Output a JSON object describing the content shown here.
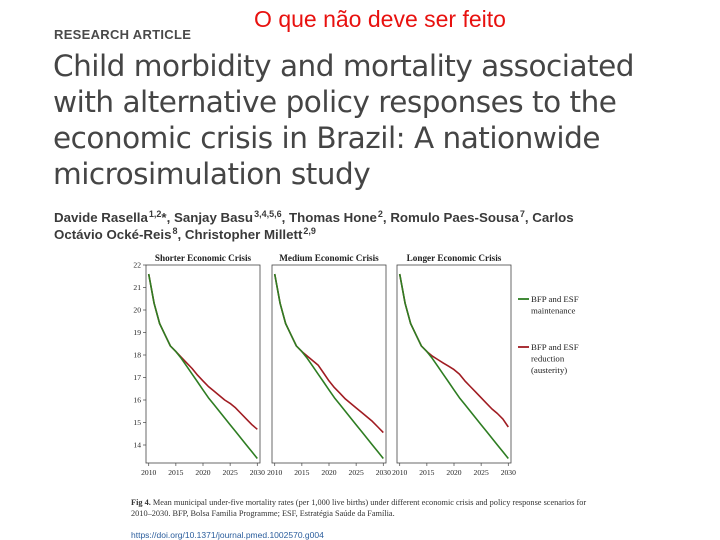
{
  "slide": {
    "title": "O que não deve ser feito"
  },
  "article": {
    "label": "RESEARCH ARTICLE",
    "title": "Child morbidity and mortality associated with alternative policy responses to the economic crisis in Brazil: A nationwide microsimulation study",
    "authors_line1": [
      {
        "name": "Davide Rasella",
        "sup": "1,2",
        "suffix": "*, "
      },
      {
        "name": "Sanjay Basu",
        "sup": "3,4,5,6",
        "suffix": ", "
      },
      {
        "name": "Thomas Hone",
        "sup": "2",
        "suffix": ", "
      },
      {
        "name": "Romulo Paes-Sousa",
        "sup": "7",
        "suffix": ", "
      },
      {
        "name": "Carlos",
        "sup": "",
        "suffix": ""
      }
    ],
    "authors_line2": [
      {
        "name": "Octávio Ocké-Reis",
        "sup": "8",
        "suffix": ", "
      },
      {
        "name": "Christopher Millett",
        "sup": "2,9",
        "suffix": ""
      }
    ],
    "caption_label": "Fig 4.",
    "caption_text": " Mean municipal under-five mortality rates (per 1,000 live births) under different economic crisis and policy response scenarios for 2010–2030. BFP, Bolsa Familia Programme; ESF, Estratégia Saúde da Família.",
    "doi": "https://doi.org/10.1371/journal.pmed.1002570.g004"
  },
  "chart_data": {
    "type": "line",
    "x": [
      2010,
      2015,
      2020,
      2025,
      2030
    ],
    "ylim": [
      13.2,
      22
    ],
    "yticks": [
      14,
      15,
      16,
      17,
      18,
      19,
      20,
      21,
      22
    ],
    "xticks": [
      2010,
      2015,
      2020,
      2025,
      2030
    ],
    "colors": {
      "maintenance": "#2e7d22",
      "reduction": "#a01c22"
    },
    "legend": [
      "BFP and ESF maintenance",
      "BFP and ESF reduction (austerity)"
    ],
    "legend_lines": [
      [
        "BFP and ESF",
        "maintenance"
      ],
      [
        "BFP and ESF",
        "reduction",
        "(austerity)"
      ]
    ],
    "legend_placement": "right",
    "panels": [
      {
        "title": "Shorter Economic Crisis",
        "series": [
          {
            "name": "BFP and ESF maintenance",
            "points": [
              [
                2010,
                21.6
              ],
              [
                2011,
                20.3
              ],
              [
                2012,
                19.4
              ],
              [
                2013,
                18.9
              ],
              [
                2014,
                18.4
              ],
              [
                2015,
                18.15
              ],
              [
                2016,
                17.85
              ],
              [
                2017,
                17.5
              ],
              [
                2018,
                17.15
              ],
              [
                2019,
                16.8
              ],
              [
                2020,
                16.45
              ],
              [
                2021,
                16.1
              ],
              [
                2022,
                15.8
              ],
              [
                2023,
                15.5
              ],
              [
                2024,
                15.2
              ],
              [
                2025,
                14.9
              ],
              [
                2026,
                14.6
              ],
              [
                2027,
                14.3
              ],
              [
                2028,
                14.0
              ],
              [
                2029,
                13.7
              ],
              [
                2030,
                13.4
              ]
            ]
          },
          {
            "name": "BFP and ESF reduction (austerity)",
            "points": [
              [
                2010,
                21.6
              ],
              [
                2011,
                20.3
              ],
              [
                2012,
                19.4
              ],
              [
                2013,
                18.9
              ],
              [
                2014,
                18.4
              ],
              [
                2015,
                18.15
              ],
              [
                2016,
                17.9
              ],
              [
                2017,
                17.65
              ],
              [
                2018,
                17.4
              ],
              [
                2019,
                17.1
              ],
              [
                2020,
                16.85
              ],
              [
                2021,
                16.6
              ],
              [
                2022,
                16.4
              ],
              [
                2023,
                16.2
              ],
              [
                2024,
                16.0
              ],
              [
                2025,
                15.85
              ],
              [
                2026,
                15.65
              ],
              [
                2027,
                15.4
              ],
              [
                2028,
                15.15
              ],
              [
                2029,
                14.9
              ],
              [
                2030,
                14.7
              ]
            ]
          }
        ]
      },
      {
        "title": "Medium Economic Crisis",
        "series": [
          {
            "name": "BFP and ESF maintenance",
            "points": [
              [
                2010,
                21.6
              ],
              [
                2011,
                20.3
              ],
              [
                2012,
                19.4
              ],
              [
                2013,
                18.9
              ],
              [
                2014,
                18.4
              ],
              [
                2015,
                18.15
              ],
              [
                2016,
                17.85
              ],
              [
                2017,
                17.5
              ],
              [
                2018,
                17.15
              ],
              [
                2019,
                16.8
              ],
              [
                2020,
                16.45
              ],
              [
                2021,
                16.1
              ],
              [
                2022,
                15.8
              ],
              [
                2023,
                15.5
              ],
              [
                2024,
                15.2
              ],
              [
                2025,
                14.9
              ],
              [
                2026,
                14.6
              ],
              [
                2027,
                14.3
              ],
              [
                2028,
                14.0
              ],
              [
                2029,
                13.7
              ],
              [
                2030,
                13.4
              ]
            ]
          },
          {
            "name": "BFP and ESF reduction (austerity)",
            "points": [
              [
                2010,
                21.6
              ],
              [
                2011,
                20.3
              ],
              [
                2012,
                19.4
              ],
              [
                2013,
                18.9
              ],
              [
                2014,
                18.4
              ],
              [
                2015,
                18.15
              ],
              [
                2016,
                17.95
              ],
              [
                2017,
                17.75
              ],
              [
                2018,
                17.55
              ],
              [
                2019,
                17.2
              ],
              [
                2020,
                16.85
              ],
              [
                2021,
                16.55
              ],
              [
                2022,
                16.3
              ],
              [
                2023,
                16.05
              ],
              [
                2024,
                15.85
              ],
              [
                2025,
                15.65
              ],
              [
                2026,
                15.45
              ],
              [
                2027,
                15.25
              ],
              [
                2028,
                15.05
              ],
              [
                2029,
                14.8
              ],
              [
                2030,
                14.55
              ]
            ]
          }
        ]
      },
      {
        "title": "Longer Economic Crisis",
        "series": [
          {
            "name": "BFP and ESF maintenance",
            "points": [
              [
                2010,
                21.6
              ],
              [
                2011,
                20.3
              ],
              [
                2012,
                19.4
              ],
              [
                2013,
                18.9
              ],
              [
                2014,
                18.4
              ],
              [
                2015,
                18.15
              ],
              [
                2016,
                17.85
              ],
              [
                2017,
                17.5
              ],
              [
                2018,
                17.15
              ],
              [
                2019,
                16.8
              ],
              [
                2020,
                16.45
              ],
              [
                2021,
                16.1
              ],
              [
                2022,
                15.8
              ],
              [
                2023,
                15.5
              ],
              [
                2024,
                15.2
              ],
              [
                2025,
                14.9
              ],
              [
                2026,
                14.6
              ],
              [
                2027,
                14.3
              ],
              [
                2028,
                14.0
              ],
              [
                2029,
                13.7
              ],
              [
                2030,
                13.4
              ]
            ]
          },
          {
            "name": "BFP and ESF reduction (austerity)",
            "points": [
              [
                2010,
                21.6
              ],
              [
                2011,
                20.3
              ],
              [
                2012,
                19.4
              ],
              [
                2013,
                18.9
              ],
              [
                2014,
                18.4
              ],
              [
                2015,
                18.15
              ],
              [
                2016,
                17.95
              ],
              [
                2017,
                17.8
              ],
              [
                2018,
                17.65
              ],
              [
                2019,
                17.5
              ],
              [
                2020,
                17.35
              ],
              [
                2021,
                17.15
              ],
              [
                2022,
                16.85
              ],
              [
                2023,
                16.6
              ],
              [
                2024,
                16.35
              ],
              [
                2025,
                16.1
              ],
              [
                2026,
                15.85
              ],
              [
                2027,
                15.6
              ],
              [
                2028,
                15.4
              ],
              [
                2029,
                15.15
              ],
              [
                2030,
                14.8
              ]
            ]
          }
        ]
      }
    ]
  }
}
